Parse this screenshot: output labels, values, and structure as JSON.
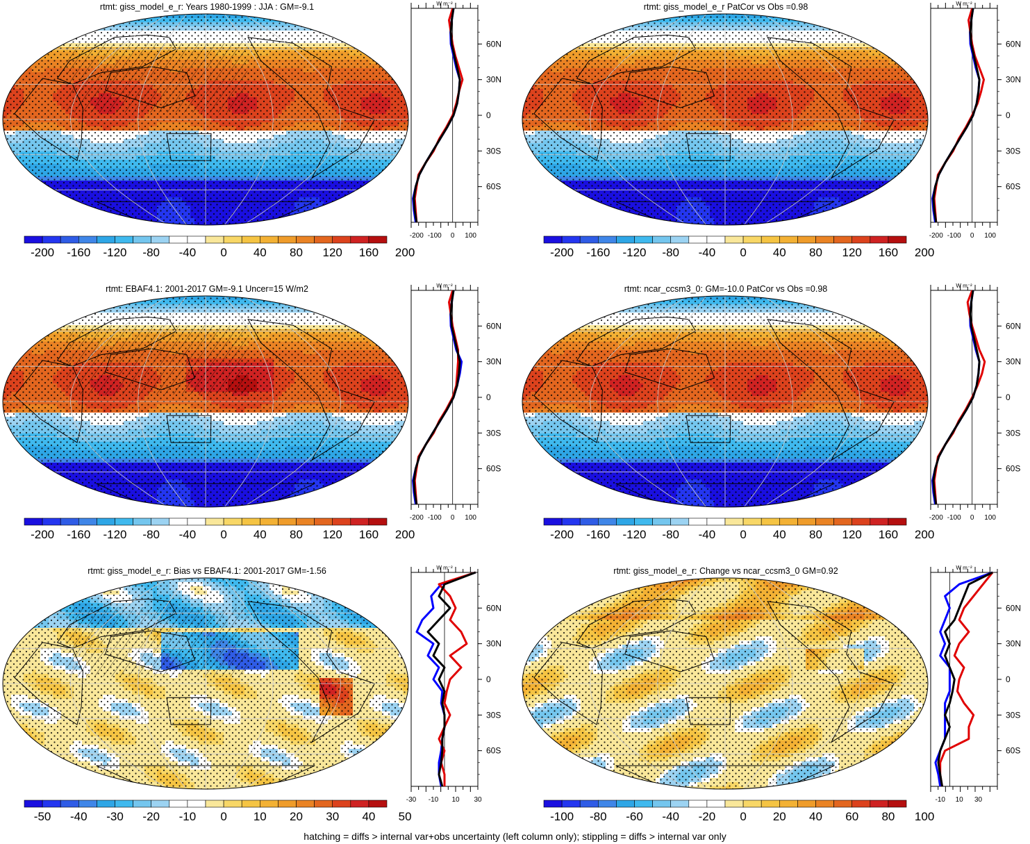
{
  "footer": "hatching = diffs > internal var+obs uncertainty (left column only); stippling = diffs > internal var only",
  "colors": {
    "diverging": [
      "#1a0fe0",
      "#2436f0",
      "#2f5ce6",
      "#3f86e8",
      "#2ea6e6",
      "#3fb9ee",
      "#74c6ee",
      "#9cd3f2",
      "#ffffff",
      "#ffffff",
      "#f9e79a",
      "#f8d766",
      "#f5c443",
      "#f3b134",
      "#ef9c2a",
      "#ea8324",
      "#e3661f",
      "#dc421d",
      "#cf2222",
      "#b50f0f"
    ],
    "land_outline": "#000000",
    "profile_model": "#000000",
    "profile_obs": "#e00000",
    "profile_other": "#0000ff"
  },
  "chart_data": [
    {
      "type": "map+profile",
      "title": "rtmt: giss_model_e_r: Years 1980-1999 : JJA : GM=-9.1",
      "colorbar_labels": [
        "-200",
        "-160",
        "-120",
        "-80",
        "-40",
        "0",
        "40",
        "80",
        "120",
        "160",
        "200"
      ],
      "profile_unit": "W m⁻²",
      "profile_xticks": [
        "-200",
        "-100",
        "0",
        "100"
      ],
      "lat_ticks": [
        "60N",
        "30N",
        "0",
        "30S",
        "60S"
      ],
      "lat_values": [
        60,
        30,
        0,
        -30,
        -60
      ],
      "field": "mean",
      "xlim": [
        -230,
        140
      ],
      "profiles": [
        {
          "color": "black",
          "lat": [
            90,
            80,
            70,
            60,
            50,
            40,
            30,
            20,
            10,
            0,
            -10,
            -20,
            -30,
            -40,
            -50,
            -60,
            -70,
            -80,
            -90
          ],
          "values": [
            5,
            -5,
            -10,
            -5,
            10,
            25,
            40,
            35,
            25,
            5,
            -30,
            -70,
            -110,
            -150,
            -185,
            -205,
            -215,
            -210,
            -200
          ]
        },
        {
          "color": "red",
          "lat": [
            90,
            80,
            70,
            60,
            50,
            40,
            30,
            20,
            10,
            0,
            -10,
            -20,
            -30,
            -40,
            -50,
            -60,
            -70,
            -80,
            -90
          ],
          "values": [
            0,
            -20,
            -10,
            0,
            15,
            35,
            55,
            35,
            20,
            0,
            -35,
            -75,
            -105,
            -150,
            -190,
            -200,
            -210,
            -205,
            -200
          ]
        },
        {
          "color": "blue",
          "lat": [
            90,
            80,
            70,
            60,
            50,
            40,
            30,
            20,
            10,
            0,
            -10,
            -20,
            -30,
            -40,
            -50,
            -60,
            -70,
            -80,
            -90
          ],
          "values": [
            5,
            -5,
            -12,
            -10,
            5,
            20,
            40,
            35,
            25,
            5,
            -30,
            -70,
            -110,
            -150,
            -185,
            -205,
            -220,
            -215,
            -205
          ]
        }
      ]
    },
    {
      "type": "map+profile",
      "title": "rtmt: giss_model_e_r PatCor vs Obs =0.98",
      "colorbar_labels": [
        "-200",
        "-160",
        "-120",
        "-80",
        "-40",
        "0",
        "40",
        "80",
        "120",
        "160",
        "200"
      ],
      "profile_unit": "W m⁻²",
      "profile_xticks": [
        "-200",
        "-100",
        "0",
        "100"
      ],
      "lat_ticks": [
        "60N",
        "30N",
        "0",
        "30S",
        "60S"
      ],
      "lat_values": [
        60,
        30,
        0,
        -30,
        -60
      ],
      "field": "mean",
      "xlim": [
        -230,
        140
      ],
      "profiles": [
        {
          "color": "black",
          "lat": [
            90,
            80,
            70,
            60,
            50,
            40,
            30,
            20,
            10,
            0,
            -10,
            -20,
            -30,
            -40,
            -50,
            -60,
            -70,
            -80,
            -90
          ],
          "values": [
            5,
            -5,
            -10,
            -5,
            10,
            25,
            40,
            35,
            25,
            5,
            -30,
            -70,
            -110,
            -150,
            -185,
            -205,
            -215,
            -210,
            -200
          ]
        },
        {
          "color": "red",
          "lat": [
            90,
            80,
            70,
            60,
            50,
            40,
            30,
            20,
            10,
            0,
            -10,
            -20,
            -30,
            -40,
            -50,
            -60,
            -70,
            -80,
            -90
          ],
          "values": [
            0,
            -20,
            -10,
            0,
            15,
            40,
            65,
            50,
            30,
            0,
            -35,
            -75,
            -105,
            -150,
            -190,
            -200,
            -210,
            -205,
            -200
          ]
        },
        {
          "color": "blue",
          "lat": [
            90,
            80,
            70,
            60,
            50,
            40,
            30,
            20,
            10,
            0,
            -10,
            -20,
            -30,
            -40,
            -50,
            -60,
            -70,
            -80,
            -90
          ],
          "values": [
            5,
            -5,
            -12,
            -10,
            5,
            20,
            40,
            35,
            25,
            5,
            -30,
            -70,
            -110,
            -150,
            -185,
            -205,
            -220,
            -215,
            -205
          ]
        }
      ]
    },
    {
      "type": "map+profile",
      "title": "rtmt: EBAF4.1: 2001-2017 GM=-9.1 Uncer=15 W/m2",
      "colorbar_labels": [
        "-200",
        "-160",
        "-120",
        "-80",
        "-40",
        "0",
        "40",
        "80",
        "120",
        "160",
        "200"
      ],
      "profile_unit": "W m⁻²",
      "profile_xticks": [
        "-200",
        "-100",
        "0",
        "100"
      ],
      "lat_ticks": [
        "60N",
        "30N",
        "0",
        "30S",
        "60S"
      ],
      "lat_values": [
        60,
        30,
        0,
        -30,
        -60
      ],
      "field": "obs",
      "xlim": [
        -230,
        140
      ],
      "profiles": [
        {
          "color": "black",
          "lat": [
            90,
            80,
            70,
            60,
            50,
            40,
            30,
            20,
            10,
            0,
            -10,
            -20,
            -30,
            -40,
            -50,
            -60,
            -70,
            -80,
            -90
          ],
          "values": [
            5,
            -5,
            -10,
            -5,
            10,
            25,
            40,
            35,
            25,
            5,
            -30,
            -70,
            -110,
            -150,
            -185,
            -205,
            -215,
            -210,
            -200
          ]
        },
        {
          "color": "red",
          "lat": [
            90,
            80,
            70,
            60,
            50,
            40,
            30,
            20,
            10,
            0,
            -10,
            -20,
            -30,
            -40,
            -50,
            -60,
            -70,
            -80,
            -90
          ],
          "values": [
            0,
            -20,
            -10,
            0,
            15,
            30,
            30,
            25,
            20,
            0,
            -35,
            -75,
            -105,
            -150,
            -190,
            -200,
            -210,
            -205,
            -200
          ]
        },
        {
          "color": "blue",
          "lat": [
            90,
            80,
            70,
            60,
            50,
            40,
            30,
            20,
            10,
            0,
            -10,
            -20,
            -30,
            -40,
            -50,
            -60,
            -70,
            -80,
            -90
          ],
          "values": [
            5,
            -5,
            -12,
            -10,
            5,
            20,
            50,
            40,
            25,
            5,
            -30,
            -70,
            -110,
            -150,
            -185,
            -205,
            -220,
            -215,
            -205
          ]
        }
      ]
    },
    {
      "type": "map+profile",
      "title": "rtmt: ncar_ccsm3_0: GM=-10.0 PatCor vs Obs =0.98",
      "colorbar_labels": [
        "-200",
        "-160",
        "-120",
        "-80",
        "-40",
        "0",
        "40",
        "80",
        "120",
        "160",
        "200"
      ],
      "profile_unit": "W m⁻²",
      "profile_xticks": [
        "-200",
        "-100",
        "0",
        "100"
      ],
      "lat_ticks": [
        "60N",
        "30N",
        "0",
        "30S",
        "60S"
      ],
      "lat_values": [
        60,
        30,
        0,
        -30,
        -60
      ],
      "field": "mean",
      "xlim": [
        -230,
        140
      ],
      "profiles": [
        {
          "color": "black",
          "lat": [
            90,
            80,
            70,
            60,
            50,
            40,
            30,
            20,
            10,
            0,
            -10,
            -20,
            -30,
            -40,
            -50,
            -60,
            -70,
            -80,
            -90
          ],
          "values": [
            5,
            -5,
            -10,
            -5,
            10,
            25,
            40,
            35,
            25,
            5,
            -30,
            -70,
            -110,
            -150,
            -185,
            -205,
            -215,
            -210,
            -200
          ]
        },
        {
          "color": "red",
          "lat": [
            90,
            80,
            70,
            60,
            50,
            40,
            30,
            20,
            10,
            0,
            -10,
            -20,
            -30,
            -40,
            -50,
            -60,
            -70,
            -80,
            -90
          ],
          "values": [
            0,
            -25,
            -15,
            0,
            20,
            40,
            70,
            55,
            30,
            0,
            -35,
            -75,
            -105,
            -150,
            -190,
            -200,
            -210,
            -205,
            -200
          ]
        },
        {
          "color": "blue",
          "lat": [
            90,
            80,
            70,
            60,
            50,
            40,
            30,
            20,
            10,
            0,
            -10,
            -20,
            -30,
            -40,
            -50,
            -60,
            -70,
            -80,
            -90
          ],
          "values": [
            5,
            -5,
            -12,
            -10,
            5,
            20,
            40,
            35,
            25,
            5,
            -30,
            -70,
            -110,
            -150,
            -185,
            -205,
            -220,
            -215,
            -205
          ]
        }
      ]
    },
    {
      "type": "map+profile",
      "title": "rtmt: giss_model_e_r: Bias vs EBAF4.1: 2001-2017 GM=-1.56",
      "colorbar_labels": [
        "-50",
        "-40",
        "-30",
        "-20",
        "-10",
        "0",
        "10",
        "20",
        "30",
        "40",
        "50"
      ],
      "profile_unit": "W m⁻²",
      "profile_xticks": [
        "-30",
        "-10",
        "10",
        "30"
      ],
      "lat_ticks": [
        "60N",
        "30N",
        "0",
        "30S",
        "60S"
      ],
      "lat_values": [
        60,
        30,
        0,
        -30,
        -60
      ],
      "field": "bias",
      "xlim": [
        -30,
        30
      ],
      "profiles": [
        {
          "color": "black",
          "lat": [
            90,
            80,
            70,
            60,
            50,
            40,
            30,
            20,
            10,
            0,
            -10,
            -20,
            -30,
            -40,
            -50,
            -60,
            -70,
            -80,
            -90
          ],
          "values": [
            28,
            0,
            -5,
            5,
            -5,
            -15,
            -5,
            -10,
            0,
            -5,
            0,
            -2,
            0,
            0,
            -2,
            -2,
            -3,
            -5,
            -2
          ]
        },
        {
          "color": "red",
          "lat": [
            90,
            80,
            70,
            60,
            50,
            40,
            30,
            20,
            10,
            0,
            -10,
            -20,
            -30,
            -40,
            -50,
            -60,
            -70,
            -80,
            -90
          ],
          "values": [
            28,
            -5,
            5,
            10,
            5,
            15,
            20,
            5,
            15,
            5,
            2,
            0,
            5,
            0,
            -5,
            0,
            -3,
            0,
            0
          ]
        },
        {
          "color": "blue",
          "lat": [
            90,
            80,
            70,
            60,
            50,
            40,
            30,
            20,
            10,
            0,
            -10,
            -20,
            -30,
            -40,
            -50,
            -60,
            -70,
            -80,
            -90
          ],
          "values": [
            28,
            -3,
            -12,
            -10,
            -20,
            -25,
            -10,
            -15,
            -5,
            -10,
            -2,
            -3,
            0,
            0,
            -2,
            -3,
            -5,
            -5,
            -3
          ]
        }
      ]
    },
    {
      "type": "map+profile",
      "title": "rtmt: giss_model_e_r: Change vs ncar_ccsm3_0 GM=0.92",
      "colorbar_labels": [
        "-100",
        "-80",
        "-60",
        "-40",
        "-20",
        "0",
        "20",
        "40",
        "60",
        "80",
        "100"
      ],
      "profile_unit": "W m⁻²",
      "profile_xticks": [
        "-10",
        "10",
        "30"
      ],
      "lat_ticks": [
        "60N",
        "30N",
        "0",
        "30S",
        "60S"
      ],
      "lat_values": [
        60,
        30,
        0,
        -30,
        -60
      ],
      "field": "change",
      "xlim": [
        -20,
        50
      ],
      "profiles": [
        {
          "color": "black",
          "lat": [
            90,
            80,
            70,
            60,
            50,
            40,
            30,
            20,
            10,
            0,
            -10,
            -20,
            -30,
            -40,
            -50,
            -60,
            -70,
            -80,
            -90
          ],
          "values": [
            45,
            20,
            15,
            10,
            5,
            -5,
            0,
            -5,
            0,
            5,
            3,
            0,
            -5,
            0,
            -5,
            -10,
            -12,
            -10,
            -8
          ]
        },
        {
          "color": "red",
          "lat": [
            90,
            80,
            70,
            60,
            50,
            40,
            30,
            20,
            10,
            0,
            -10,
            -20,
            -30,
            -40,
            -50,
            -60,
            -70,
            -80,
            -90
          ],
          "values": [
            45,
            35,
            25,
            15,
            10,
            20,
            10,
            5,
            15,
            10,
            8,
            15,
            25,
            20,
            20,
            -5,
            -10,
            -10,
            -8
          ]
        },
        {
          "color": "blue",
          "lat": [
            90,
            80,
            70,
            60,
            50,
            40,
            30,
            20,
            10,
            0,
            -10,
            -20,
            -30,
            -40,
            -50,
            -60,
            -70,
            -80,
            -90
          ],
          "values": [
            45,
            10,
            -5,
            0,
            -5,
            -10,
            -5,
            -10,
            0,
            0,
            0,
            -5,
            -5,
            -5,
            -5,
            -10,
            -15,
            -12,
            -10
          ]
        }
      ]
    }
  ]
}
